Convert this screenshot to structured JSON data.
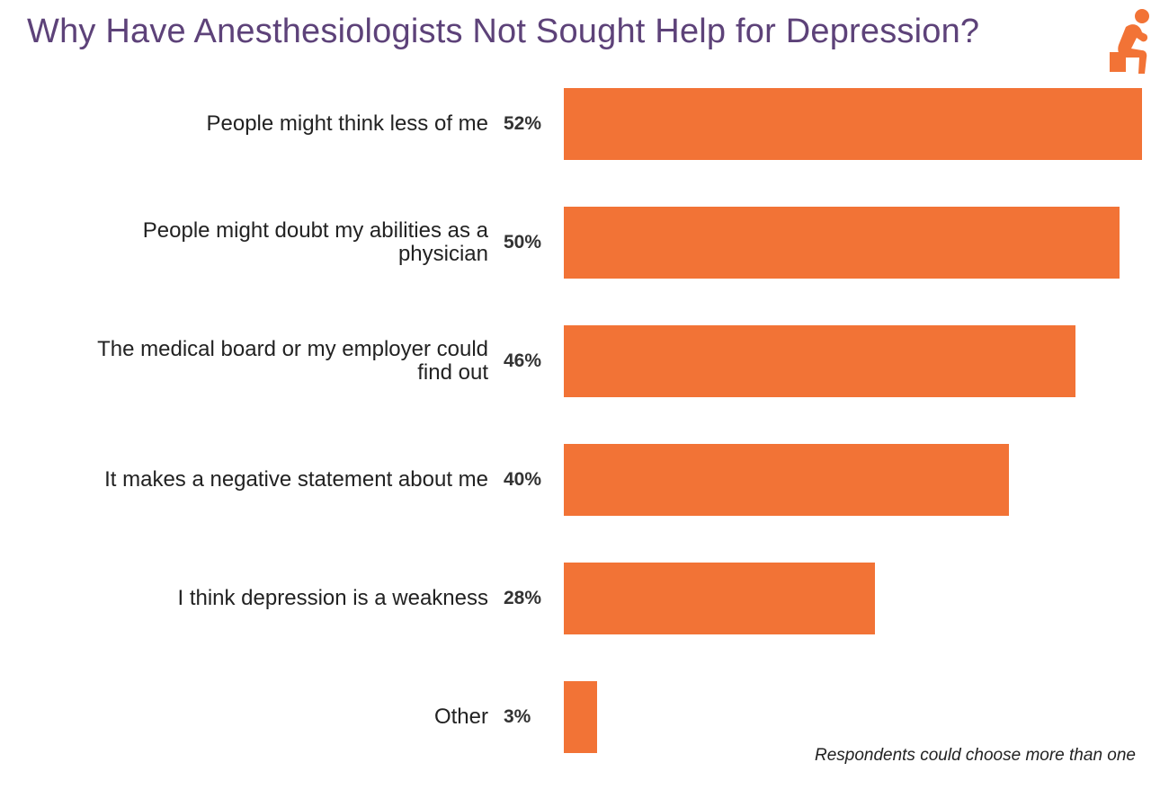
{
  "chart_data": {
    "type": "bar",
    "orientation": "horizontal",
    "title": "Why Have Anesthesiologists Not Sought Help for Depression?",
    "categories": [
      "People might think less of me",
      "People might doubt my abilities as a physician",
      "The medical board or my employer could find out",
      "It makes a negative statement about me",
      "I think depression is a weakness",
      "Other"
    ],
    "values": [
      52,
      50,
      46,
      40,
      28,
      3
    ],
    "value_labels": [
      "52%",
      "50%",
      "46%",
      "40%",
      "28%",
      "3%"
    ],
    "unit": "%",
    "xlim": [
      0,
      52
    ],
    "grid": false,
    "bar_color": "#f27336",
    "title_color": "#5d4279",
    "note": "Respondents could choose more than one",
    "icon": "thinking-person-icon"
  }
}
